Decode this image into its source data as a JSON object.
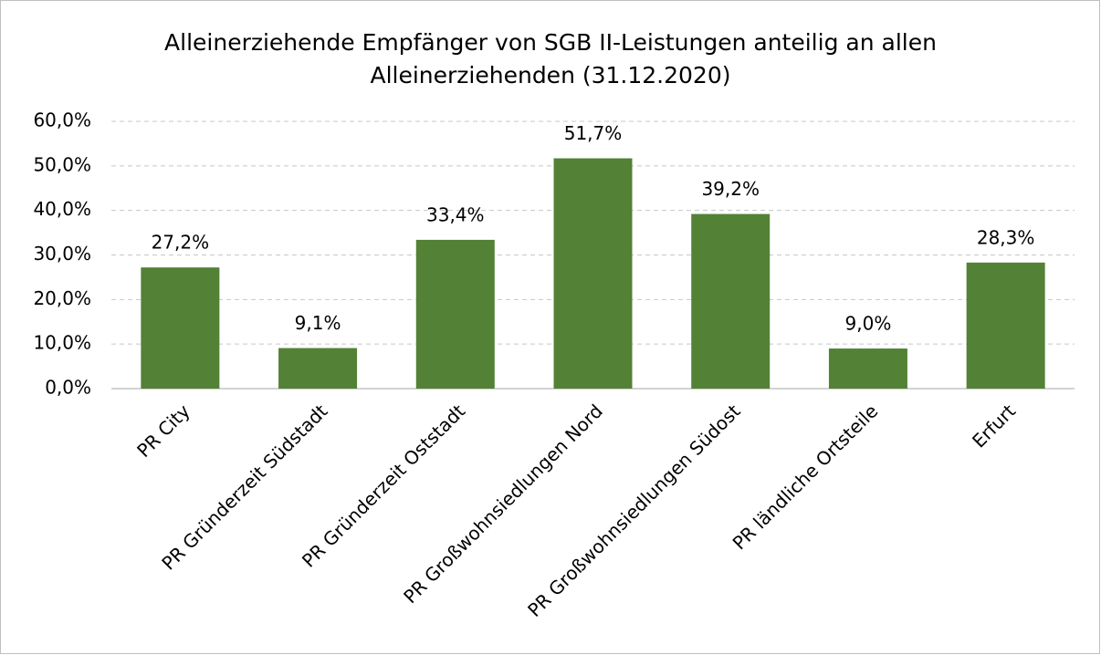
{
  "chart_data": {
    "type": "bar",
    "title": [
      "Alleinerziehende Empfänger von SGB II-Leistungen anteilig an allen",
      "Alleinerziehenden (31.12.2020)"
    ],
    "categories": [
      "PR City",
      "PR Gründerzeit Südstadt",
      "PR Gründerzeit Oststadt",
      "PR Großwohnsiedlungen Nord",
      "PR Großwohnsiedlungen Südost",
      "PR ländliche Ortsteile",
      "Erfurt"
    ],
    "values": [
      27.2,
      9.1,
      33.4,
      51.7,
      39.2,
      9.0,
      28.3
    ],
    "value_labels": [
      "27,2%",
      "9,1%",
      "33,4%",
      "51,7%",
      "39,2%",
      "9,0%",
      "28,3%"
    ],
    "color": "#538135",
    "ylim": [
      0,
      60
    ],
    "yticks": [
      {
        "value": 0,
        "label": "0,0%"
      },
      {
        "value": 10,
        "label": "10,0%"
      },
      {
        "value": 20,
        "label": "20,0%"
      },
      {
        "value": 30,
        "label": "30,0%"
      },
      {
        "value": 40,
        "label": "40,0%"
      },
      {
        "value": 50,
        "label": "50,0%"
      },
      {
        "value": 60,
        "label": "60,0%"
      }
    ],
    "grid": true
  }
}
